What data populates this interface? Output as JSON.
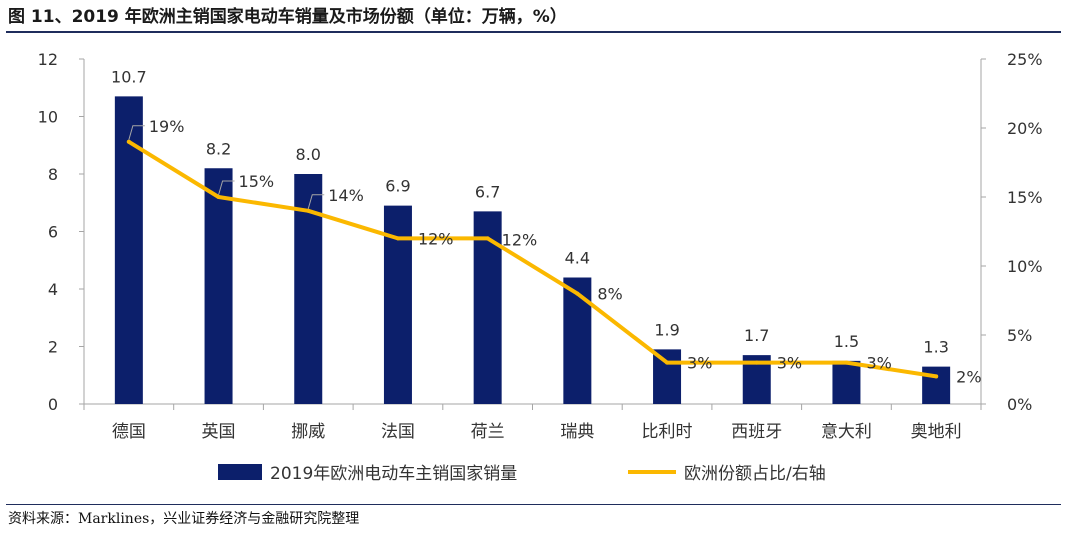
{
  "title": "图 11、2019 年欧洲主销国家电动车销量及市场份额（单位：万辆，%）",
  "source": "资料来源：Marklines，兴业证券经济与金融研究院整理",
  "chart_data": {
    "type": "bar+line",
    "categories": [
      "德国",
      "英国",
      "挪威",
      "法国",
      "荷兰",
      "瑞典",
      "比利时",
      "西班牙",
      "意大利",
      "奥地利"
    ],
    "series": [
      {
        "name": "2019年欧洲电动车主销国家销量",
        "type": "bar",
        "axis": "left",
        "values": [
          10.7,
          8.2,
          8.0,
          6.9,
          6.7,
          4.4,
          1.9,
          1.7,
          1.5,
          1.3
        ],
        "labels": [
          "10.7",
          "8.2",
          "8.0",
          "6.9",
          "6.7",
          "4.4",
          "1.9",
          "1.7",
          "1.5",
          "1.3"
        ],
        "color": "#0c1f6b"
      },
      {
        "name": "欧洲份额占比/右轴",
        "type": "line",
        "axis": "right",
        "values": [
          19,
          15,
          14,
          12,
          12,
          8,
          3,
          3,
          3,
          2
        ],
        "labels": [
          "19%",
          "15%",
          "14%",
          "12%",
          "12%",
          "8%",
          "3%",
          "3%",
          "3%",
          "2%"
        ],
        "color": "#fbb800"
      }
    ],
    "ylim_left": [
      0,
      12
    ],
    "yticks_left": [
      "0",
      "2",
      "4",
      "6",
      "8",
      "10",
      "12"
    ],
    "ylim_right": [
      0,
      25
    ],
    "yticks_right": [
      "0%",
      "5%",
      "10%",
      "15%",
      "20%",
      "25%"
    ],
    "grid": false,
    "legend_position": "bottom"
  }
}
